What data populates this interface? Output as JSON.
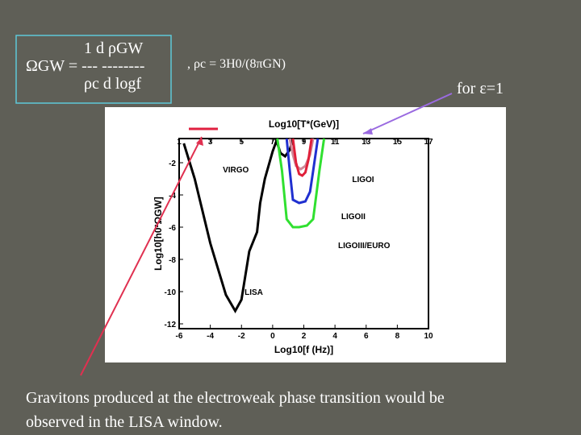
{
  "formula": {
    "line1": "1   d ρGW",
    "line2": "ΩGW = ---  --------",
    "line3": "ρc   d logf"
  },
  "definition": ", ρc = 3H0/(8πGN)",
  "condition": "for ε=1",
  "caption": {
    "line1": "Gravitons produced at the electroweak phase transition would be",
    "line2": "observed in the LISA window."
  },
  "chart_data": {
    "type": "line",
    "xlabel": "Log10[f (Hz)]",
    "x2label": "Log10[T*(GeV)]",
    "ylabel": "Log10[h0²ΩGW]",
    "xlim": [
      -6,
      10
    ],
    "xticks": [
      -6,
      -4,
      -2,
      0,
      2,
      4,
      6,
      8,
      10
    ],
    "x2lim": [
      1,
      17
    ],
    "x2ticks": [
      1,
      3,
      5,
      7,
      9,
      11,
      13,
      15,
      17
    ],
    "ylim": [
      -12.3,
      -0.5
    ],
    "yticks": [
      -2,
      -4,
      -6,
      -8,
      -10,
      -12
    ],
    "series": [
      {
        "color": "#000000",
        "x": [
          -5.7,
          -5,
          -4,
          -3,
          -2.4,
          -2,
          -1.5,
          -1,
          -0.8,
          -0.5,
          0,
          0.3
        ],
        "values": [
          -0.8,
          -3,
          -7,
          -10.2,
          -11.2,
          -10.5,
          -7.5,
          -6.3,
          -4.5,
          -3,
          -1.3,
          -0.5
        ]
      },
      {
        "color": "#000000",
        "x": [
          0.2,
          0.5,
          0.8,
          1.1,
          1.3
        ],
        "values": [
          -0.5,
          -1.4,
          -1.6,
          -1.2,
          -0.5
        ]
      },
      {
        "color": "#30e030",
        "x": [
          0.3,
          0.6,
          0.9,
          1.3,
          1.7,
          2.2,
          2.6,
          3.0,
          3.3
        ],
        "values": [
          -0.5,
          -2.5,
          -5.5,
          -6.0,
          -6.0,
          -5.9,
          -5.5,
          -2.5,
          -0.5
        ]
      },
      {
        "color": "#2030d0",
        "x": [
          0.9,
          1.1,
          1.3,
          1.7,
          2.1,
          2.4,
          2.6,
          2.9
        ],
        "values": [
          -0.5,
          -2.5,
          -4.3,
          -4.5,
          -4.4,
          -3.8,
          -2.5,
          -0.5
        ]
      },
      {
        "color": "#d08898",
        "x": [
          1.1,
          1.3,
          1.5,
          1.8,
          2.1,
          2.4,
          2.6
        ],
        "values": [
          -0.5,
          -1.5,
          -2.2,
          -2.4,
          -2.2,
          -1.5,
          -0.5
        ]
      },
      {
        "color": "#e0203a",
        "x": [
          1.3,
          1.5,
          1.7,
          1.9,
          2.1,
          2.3,
          2.5
        ],
        "values": [
          -0.5,
          -2.0,
          -2.7,
          -2.8,
          -2.6,
          -1.8,
          -0.5
        ]
      }
    ],
    "annotations": [
      {
        "text": "VIRGO",
        "x": -3.2,
        "y": -2.6
      },
      {
        "text": "LIGOI",
        "x": 5.1,
        "y": -3.2
      },
      {
        "text": "LIGOII",
        "x": 4.4,
        "y": -5.5
      },
      {
        "text": "LIGOIII/EURO",
        "x": 4.2,
        "y": -7.3
      },
      {
        "text": "LISA",
        "x": -1.8,
        "y": -10.2
      }
    ]
  }
}
